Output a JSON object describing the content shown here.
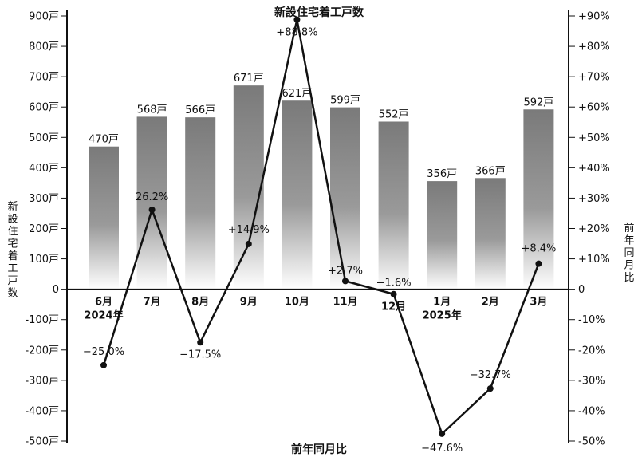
{
  "chart_data": {
    "type": "bar",
    "title": "新設住宅着工戸数",
    "bottom_label": "前年同月比",
    "ylabel_left": "新設住宅着工戸数",
    "ylabel_right": "前年同月比",
    "categories": [
      "6月",
      "7月",
      "8月",
      "9月",
      "10月",
      "11月",
      "12月",
      "1月",
      "2月",
      "3月"
    ],
    "year_labels": [
      "2024年",
      "",
      "",
      "",
      "",
      "",
      "",
      "2025年",
      "",
      ""
    ],
    "left_axis": {
      "ylim": [
        -500,
        900
      ],
      "ticks": [
        -500,
        -400,
        -300,
        -200,
        -100,
        0,
        100,
        200,
        300,
        400,
        500,
        600,
        700,
        800,
        900
      ],
      "tick_labels": [
        "-500戸",
        "-400戸",
        "-300戸",
        "-200戸",
        "-100戸",
        "0",
        "100戸",
        "200戸",
        "300戸",
        "400戸",
        "500戸",
        "600戸",
        "700戸",
        "800戸",
        "900戸"
      ]
    },
    "right_axis": {
      "ylim": [
        -50,
        90
      ],
      "ticks": [
        -50,
        -40,
        -30,
        -20,
        -10,
        0,
        10,
        20,
        30,
        40,
        50,
        60,
        70,
        80,
        90
      ],
      "tick_labels": [
        "-50%",
        "-40%",
        "-30%",
        "-20%",
        "-10%",
        "0",
        "+10%",
        "+20%",
        "+30%",
        "+40%",
        "+50%",
        "+60%",
        "+70%",
        "+80%",
        "+90%"
      ]
    },
    "series": [
      {
        "type": "bar",
        "axis": "left",
        "values": [
          470,
          568,
          566,
          671,
          621,
          599,
          552,
          356,
          366,
          592
        ],
        "labels": [
          "470戸",
          "568戸",
          "566戸",
          "671戸",
          "621戸",
          "599戸",
          "552戸",
          "356戸",
          "366戸",
          "592戸"
        ]
      },
      {
        "type": "line",
        "axis": "right",
        "values": [
          -25.0,
          26.2,
          -17.5,
          14.9,
          88.8,
          2.7,
          -1.6,
          -47.6,
          -32.7,
          8.4
        ],
        "labels": [
          "−25.0%",
          "26.2%",
          "−17.5%",
          "+14.9%",
          "+88.8%",
          "+2.7%",
          "−1.6%",
          "−47.6%",
          "−32.7%",
          "+8.4%"
        ]
      }
    ],
    "colors": {
      "bar_top": "#7a7a7a",
      "bar_bottom": "#ffffff",
      "line": "#111111"
    },
    "grid": false,
    "legend": "none"
  }
}
